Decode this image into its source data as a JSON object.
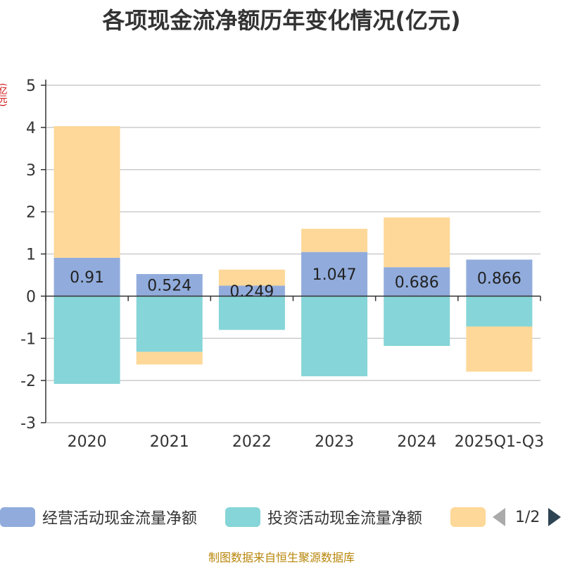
{
  "chart_data": {
    "type": "bar",
    "stacked": true,
    "title": "各项现金流净额历年变化情况(亿元)",
    "ylabel": "(亿元)",
    "ylim": [
      -3,
      5
    ],
    "yticks": [
      5,
      4,
      3,
      2,
      1,
      0,
      -1,
      -2,
      -3
    ],
    "ytick_labels": [
      "5",
      "4",
      "3",
      "2",
      "1",
      "0",
      "-1",
      "-2",
      "-3"
    ],
    "grid": true,
    "categories": [
      "2020",
      "2021",
      "2022",
      "2023",
      "2024",
      "2025Q1-Q3"
    ],
    "series": [
      {
        "name": "经营活动现金流量净额",
        "color": "#91acdc",
        "values": [
          0.91,
          0.524,
          0.249,
          1.047,
          0.686,
          0.866
        ]
      },
      {
        "name": "投资活动现金流量净额",
        "color": "#86d5d8",
        "values": [
          -2.08,
          -1.32,
          -0.8,
          -1.9,
          -1.18,
          -0.72
        ]
      },
      {
        "name": "",
        "color": "#fed898",
        "values": [
          3.12,
          -0.3,
          0.38,
          0.55,
          1.18,
          -1.07
        ]
      }
    ],
    "data_labels": [
      "0.91",
      "0.524",
      "0.249",
      "1.047",
      "0.686",
      "0.866"
    ],
    "legend_position": "bottom"
  },
  "legend": {
    "items": [
      "经营活动现金流量净额",
      "投资活动现金流量净额",
      ""
    ],
    "page": "1/2"
  },
  "footer": {
    "source": "制图数据来自恒生聚源数据库"
  }
}
